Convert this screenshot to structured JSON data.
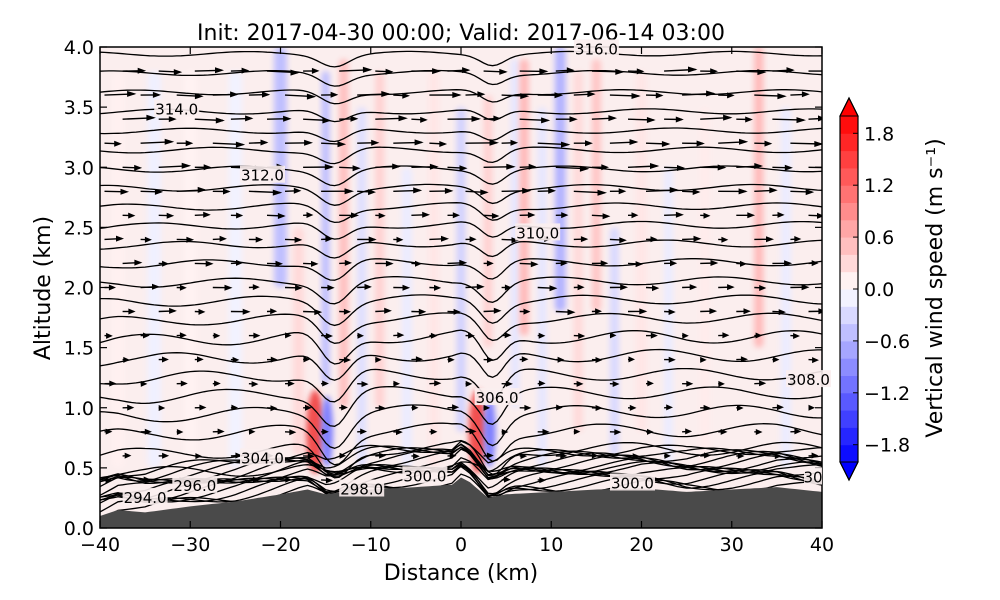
{
  "chart_data": {
    "type": "heatmap",
    "title": "Init: 2017-04-30 00:00; Valid: 2017-06-14 03:00",
    "xlabel": "Distance (km)",
    "ylabel": "Altitude (km)",
    "xlim": [
      -40,
      40
    ],
    "ylim": [
      0.0,
      4.0
    ],
    "xticks": [
      "−40",
      "−30",
      "−20",
      "−10",
      "0",
      "10",
      "20",
      "30",
      "40"
    ],
    "yticks": [
      "0.0",
      "0.5",
      "1.0",
      "1.5",
      "2.0",
      "2.5",
      "3.0",
      "3.5",
      "4.0"
    ],
    "colorbar": {
      "label": "Vertical wind speed (m s⁻¹)",
      "range": [
        -2.0,
        2.0
      ],
      "ticks": [
        "1.8",
        "1.2",
        "0.6",
        "0.0",
        "−0.6",
        "−1.2",
        "−1.8"
      ],
      "tick_values": [
        1.8,
        1.2,
        0.6,
        0.0,
        -0.6,
        -1.2,
        -1.8
      ],
      "colormap": "bwr",
      "extend": "both"
    },
    "terrain": {
      "color": "#4a4a4a",
      "x": [
        -40,
        -38,
        -35,
        -30,
        -25,
        -20,
        -17,
        -15,
        -13,
        -10,
        -5,
        -1,
        0,
        1,
        3,
        5,
        10,
        15,
        20,
        25,
        30,
        35,
        40
      ],
      "y": [
        0.1,
        0.15,
        0.13,
        0.18,
        0.22,
        0.28,
        0.32,
        0.28,
        0.3,
        0.32,
        0.34,
        0.36,
        0.42,
        0.38,
        0.25,
        0.28,
        0.3,
        0.32,
        0.33,
        0.3,
        0.32,
        0.34,
        0.3
      ]
    },
    "vertical_wind_features": [
      {
        "x": -15.5,
        "y": 0.8,
        "w": -1.8
      },
      {
        "x": 2.5,
        "y": 0.8,
        "w": -1.6
      },
      {
        "x": -15,
        "y": 2.0,
        "w": 0.5
      },
      {
        "x": -12,
        "y": 3.2,
        "w": 0.6
      },
      {
        "x": 7,
        "y": 3.3,
        "w": 0.6
      },
      {
        "x": 12,
        "y": 3.3,
        "w": -0.5
      },
      {
        "x": -20,
        "y": 3.6,
        "w": -0.5
      },
      {
        "x": 33,
        "y": 3.4,
        "w": 0.6
      }
    ],
    "contours": {
      "labels": [
        {
          "text": "294.0",
          "x": -35,
          "y": 0.25
        },
        {
          "text": "296.0",
          "x": -29.5,
          "y": 0.35
        },
        {
          "text": "298.0",
          "x": -11,
          "y": 0.32
        },
        {
          "text": "300.0",
          "x": -4,
          "y": 0.43
        },
        {
          "text": "300.0",
          "x": 19,
          "y": 0.37
        },
        {
          "text": "304.0",
          "x": -22,
          "y": 0.58
        },
        {
          "text": "306.0",
          "x": 4,
          "y": 1.08
        },
        {
          "text": "308.0",
          "x": 38.5,
          "y": 1.23
        },
        {
          "text": "30",
          "x": 39,
          "y": 0.42
        },
        {
          "text": "310.0",
          "x": 8.5,
          "y": 2.45
        },
        {
          "text": "312.0",
          "x": -22,
          "y": 2.93
        },
        {
          "text": "314.0",
          "x": -31.5,
          "y": 3.48
        },
        {
          "text": "316.0",
          "x": 15,
          "y": 3.98
        }
      ]
    },
    "wind_vectors": {
      "color": "#000000",
      "description_rows_km": [
        0.4,
        0.6,
        0.8,
        1.0,
        1.2,
        1.4,
        1.6,
        1.8,
        2.0,
        2.2,
        2.4,
        2.6,
        2.8,
        3.0,
        3.2,
        3.4,
        3.6,
        3.8
      ]
    }
  }
}
